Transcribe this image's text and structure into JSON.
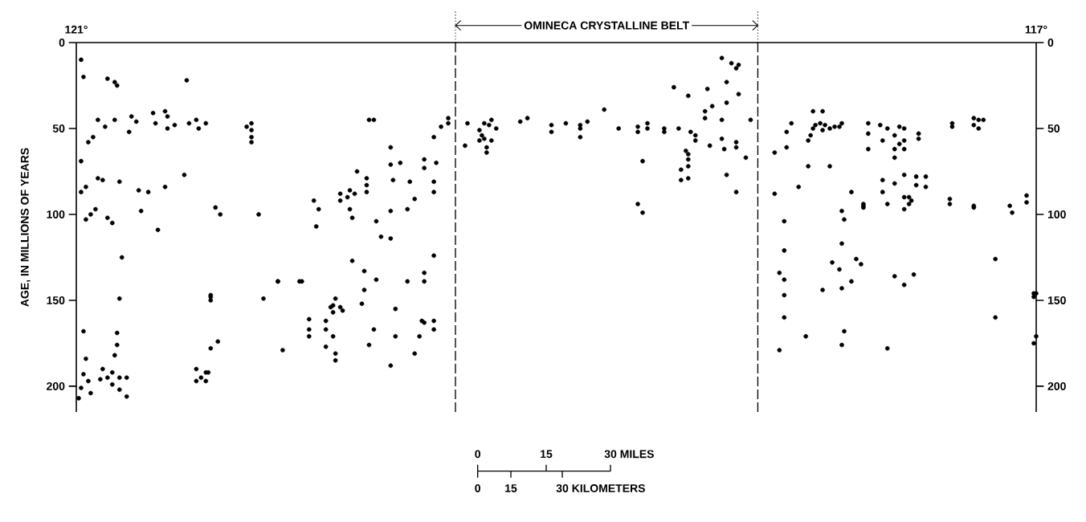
{
  "chart_data": {
    "type": "scatter",
    "ylabel": "AGE, IN MILLIONS OF YEARS",
    "xlim": [
      121,
      117
    ],
    "xticks": [
      {
        "value": 121,
        "label": "121°"
      },
      {
        "value": 117,
        "label": "117°"
      }
    ],
    "ylim": [
      215,
      0
    ],
    "yticks": [
      0,
      50,
      100,
      150,
      200
    ],
    "y2lim": [
      215,
      0
    ],
    "y2ticks": [
      0,
      50,
      100,
      150,
      200
    ],
    "marker": "circle",
    "ref_lines": [
      {
        "axis": "x",
        "value": 119.42,
        "line_style": "dashed"
      },
      {
        "axis": "x",
        "value": 118.16,
        "line_style": "dashed"
      }
    ],
    "annotations": [
      "OMINECA CRYSTALLINE BELT",
      "0",
      "15",
      "30 MILES",
      "0",
      "15",
      "30 KILOMETERS"
    ],
    "series": [
      {
        "color": "#000000",
        "x": [
          120.98,
          120.97,
          120.87,
          120.84,
          120.83,
          120.54,
          120.91,
          120.88,
          120.84,
          120.77,
          120.75,
          120.68,
          120.67,
          120.63,
          120.62,
          120.62,
          120.59,
          120.53,
          120.5,
          120.49,
          120.46,
          120.78,
          120.95,
          120.93,
          120.98,
          120.98,
          120.96,
          120.91,
          120.89,
          120.82,
          120.74,
          120.7,
          120.63,
          120.55,
          120.96,
          120.94,
          120.92,
          120.87,
          120.85,
          120.73,
          120.66,
          120.42,
          120.4,
          120.81,
          120.44,
          120.29,
          120.27,
          120.27,
          120.27,
          120.27,
          120.24,
          119.78,
          119.76,
          119.83,
          119.79,
          119.79,
          119.79,
          119.86,
          119.84,
          119.87,
          119.9,
          119.9,
          120.01,
          119.99,
          120.0,
          119.86,
          119.85,
          119.75,
          119.85,
          119.8,
          119.75,
          119.8,
          120.16,
          120.06,
          119.45,
          119.45,
          119.48,
          119.51,
          119.69,
          119.69,
          119.65,
          119.55,
          119.55,
          119.5,
          119.68,
          119.61,
          119.51,
          119.51,
          119.59,
          119.69,
          119.62,
          119.73,
          119.69,
          119.51,
          119.55,
          119.55,
          119.62,
          119.37,
          119.38,
          119.3,
          119.27,
          119.28,
          119.25,
          119.32,
          119.31,
          119.32,
          119.3,
          119.27,
          119.29,
          119.29,
          119.15,
          119.12,
          119.02,
          119.02,
          118.96,
          118.9,
          118.9,
          118.9,
          118.87,
          118.8,
          118.74,
          118.66,
          118.66,
          118.64,
          118.66,
          118.64,
          118.62,
          118.62,
          118.55,
          118.55,
          118.49,
          118.51,
          118.45,
          118.44,
          118.42,
          118.42,
          118.46,
          118.45,
          118.45,
          118.45,
          118.48,
          118.45,
          118.48,
          118.31,
          118.27,
          118.25,
          118.24,
          118.29,
          118.37,
          118.24,
          118.29,
          118.35,
          118.38,
          118.38,
          118.31,
          118.19,
          118.36,
          118.31,
          118.3,
          118.25,
          118.25,
          118.21,
          118.29,
          118.25,
          118.09,
          118.09,
          118.04,
          118.04,
          118.02,
          117.99,
          117.95,
          117.94,
          117.95,
          117.93,
          117.92,
          117.93,
          117.89,
          117.9,
          117.89,
          117.88,
          117.86,
          117.84,
          117.82,
          117.81,
          117.86,
          117.77,
          117.81,
          117.8,
          117.72,
          117.72,
          117.7,
          117.7,
          117.7,
          118.05,
          118.05,
          118.07,
          118.05,
          118.05,
          117.85,
          117.82,
          117.75,
          117.73,
          117.77,
          117.81,
          117.89,
          117.81,
          117.65,
          117.62,
          117.57,
          117.55,
          117.59,
          117.64,
          117.57,
          117.59,
          117.55,
          117.55,
          117.59,
          117.49,
          117.49,
          117.35,
          117.35,
          117.26,
          117.24,
          117.26,
          117.22,
          117.24,
          117.64,
          117.59,
          117.55,
          117.5,
          117.5,
          117.46,
          117.46,
          117.64,
          117.62,
          117.55,
          117.53,
          117.52,
          117.53,
          117.55,
          117.72,
          117.36,
          117.36,
          117.26,
          117.26,
          117.11,
          117.1,
          117.04,
          117.04,
          117.17,
          117.59,
          117.51,
          117.55,
          117.0,
          120.97,
          120.96,
          120.97,
          120.95,
          120.98,
          120.99,
          120.94,
          120.9,
          120.89,
          120.87,
          120.85,
          120.84,
          120.85,
          120.83,
          120.83,
          120.82,
          120.82,
          120.82,
          120.79,
          120.79,
          120.5,
          120.48,
          120.46,
          120.46,
          120.45,
          120.44,
          120.44,
          120.44,
          120.41,
          120.5,
          120.22,
          120.16,
          120.14,
          120.07,
          120.03,
          120.03,
          120.03,
          119.96,
          119.96,
          119.96,
          119.94,
          119.93,
          119.92,
          119.9,
          119.89,
          119.93,
          119.93,
          119.92,
          119.92,
          119.78,
          119.76,
          119.81,
          119.69,
          119.67,
          119.67,
          119.59,
          119.57,
          119.56,
          119.55,
          119.51,
          119.51,
          118.07,
          118.05,
          117.96,
          117.8,
          117.81,
          117.62,
          117.17,
          117.01,
          117.01,
          117.0,
          117.01
        ],
        "values": [
          10,
          20,
          21,
          23,
          25,
          22,
          45,
          49,
          45,
          43,
          46,
          41,
          47,
          40,
          43,
          50,
          48,
          47,
          45,
          50,
          47,
          52,
          58,
          55,
          69,
          87,
          84,
          79,
          80,
          81,
          86,
          87,
          84,
          77,
          103,
          100,
          97,
          102,
          105,
          98,
          109,
          96,
          100,
          125,
          147,
          49,
          47,
          51,
          55,
          58,
          100,
          45,
          45,
          75,
          79,
          83,
          87,
          86,
          88,
          90,
          88,
          92,
          92,
          97,
          107,
          97,
          102,
          104,
          127,
          133,
          138,
          144,
          139,
          139,
          44,
          47,
          49,
          55,
          61,
          71,
          70,
          68,
          73,
          70,
          80,
          81,
          81,
          87,
          91,
          98,
          97,
          113,
          114,
          124,
          134,
          139,
          139,
          47,
          60,
          47,
          45,
          48,
          50,
          51,
          54,
          57,
          56,
          57,
          61,
          64,
          46,
          44,
          48,
          52,
          47,
          48,
          50,
          55,
          46,
          39,
          50,
          49,
          52,
          69,
          94,
          99,
          47,
          50,
          50,
          52,
          50,
          26,
          31,
          52,
          54,
          57,
          63,
          65,
          68,
          72,
          74,
          79,
          80,
          9,
          12,
          15,
          13,
          23,
          27,
          30,
          35,
          37,
          40,
          44,
          45,
          45,
          60,
          56,
          62,
          58,
          61,
          67,
          77,
          87,
          64,
          88,
          52,
          61,
          47,
          84,
          57,
          54,
          72,
          50,
          48,
          40,
          40,
          47,
          51,
          48,
          50,
          49,
          49,
          47,
          72,
          87,
          98,
          103,
          94,
          96,
          47,
          53,
          62,
          104,
          121,
          134,
          138,
          147,
          128,
          132,
          126,
          129,
          139,
          143,
          144,
          117,
          48,
          50,
          49,
          50,
          54,
          57,
          59,
          62,
          57,
          62,
          67,
          53,
          56,
          47,
          49,
          44,
          45,
          48,
          45,
          50,
          80,
          82,
          77,
          78,
          83,
          78,
          84,
          87,
          94,
          90,
          90,
          92,
          94,
          97,
          95,
          91,
          94,
          95,
          96,
          95,
          99,
          89,
          93,
          126,
          136,
          135,
          141,
          146,
          168,
          184,
          193,
          197,
          201,
          207,
          204,
          196,
          190,
          195,
          192,
          182,
          199,
          169,
          176,
          195,
          202,
          149,
          195,
          206,
          190,
          195,
          192,
          197,
          192,
          148,
          150,
          178,
          174,
          197,
          149,
          139,
          179,
          139,
          161,
          167,
          171,
          177,
          162,
          167,
          154,
          153,
          149,
          154,
          156,
          157,
          171,
          181,
          185,
          176,
          167,
          152,
          188,
          171,
          155,
          181,
          171,
          162,
          163,
          162,
          167,
          179,
          160,
          171,
          168,
          176,
          178,
          160,
          146,
          148,
          171,
          175
        ]
      }
    ]
  }
}
